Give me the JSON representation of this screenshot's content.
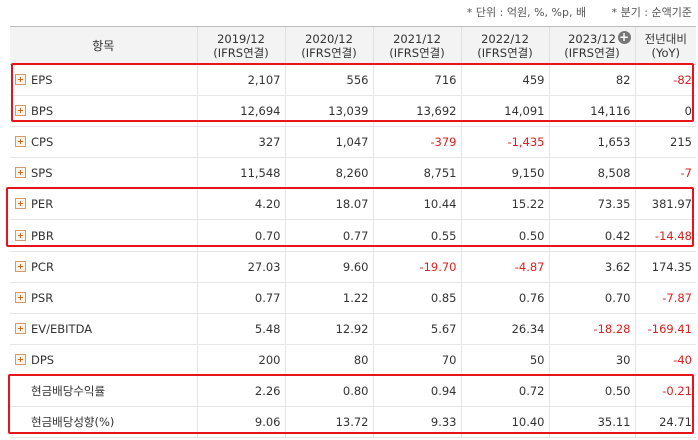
{
  "notes": {
    "unit": "* 단위 : 억원, %, %p, 배",
    "basis": "* 분기 : 순액기준"
  },
  "header": {
    "item": "항목",
    "periods": [
      {
        "year": "2019/12",
        "basis": "(IFRS연결)"
      },
      {
        "year": "2020/12",
        "basis": "(IFRS연결)"
      },
      {
        "year": "2021/12",
        "basis": "(IFRS연결)"
      },
      {
        "year": "2022/12",
        "basis": "(IFRS연결)"
      },
      {
        "year": "2023/12",
        "basis": "(IFRS연결)"
      }
    ],
    "yoy_line1": "전년대비",
    "yoy_line2": "(YoY)",
    "expand_symbol": "+"
  },
  "rows": [
    {
      "label": "EPS",
      "values": [
        "2,107",
        "556",
        "716",
        "459",
        "82"
      ],
      "yoy": "-82"
    },
    {
      "label": "BPS",
      "values": [
        "12,694",
        "13,039",
        "13,692",
        "14,091",
        "14,116"
      ],
      "yoy": "0"
    },
    {
      "label": "CPS",
      "values": [
        "327",
        "1,047",
        "-379",
        "-1,435",
        "1,653"
      ],
      "yoy": "215"
    },
    {
      "label": "SPS",
      "values": [
        "11,548",
        "8,260",
        "8,751",
        "9,150",
        "8,508"
      ],
      "yoy": "-7"
    },
    {
      "label": "PER",
      "values": [
        "4.20",
        "18.07",
        "10.44",
        "15.22",
        "73.35"
      ],
      "yoy": "381.97"
    },
    {
      "label": "PBR",
      "values": [
        "0.70",
        "0.77",
        "0.55",
        "0.50",
        "0.42"
      ],
      "yoy": "-14.48"
    },
    {
      "label": "PCR",
      "values": [
        "27.03",
        "9.60",
        "-19.70",
        "-4.87",
        "3.62"
      ],
      "yoy": "174.35"
    },
    {
      "label": "PSR",
      "values": [
        "0.77",
        "1.22",
        "0.85",
        "0.76",
        "0.70"
      ],
      "yoy": "-7.87"
    },
    {
      "label": "EV/EBITDA",
      "values": [
        "5.48",
        "12.92",
        "5.67",
        "26.34",
        "-18.28"
      ],
      "yoy": "-169.41"
    },
    {
      "label": "DPS",
      "values": [
        "200",
        "80",
        "70",
        "50",
        "30"
      ],
      "yoy": "-40"
    },
    {
      "label": "현금배당수익률",
      "values": [
        "2.26",
        "0.80",
        "0.94",
        "0.72",
        "0.50"
      ],
      "yoy": "-0.21"
    },
    {
      "label": "현금배당성향(%)",
      "values": [
        "9.06",
        "13.72",
        "9.33",
        "10.40",
        "35.11"
      ],
      "yoy": "24.71"
    }
  ],
  "expandable_rows": [
    "EPS",
    "BPS",
    "CPS",
    "SPS",
    "PER",
    "PBR",
    "PCR",
    "PSR",
    "EV/EBITDA",
    "DPS"
  ],
  "colors": {
    "negative": "#e0201f",
    "highlight_border": "#e8131b",
    "header_bg": "#f3f3f3"
  }
}
